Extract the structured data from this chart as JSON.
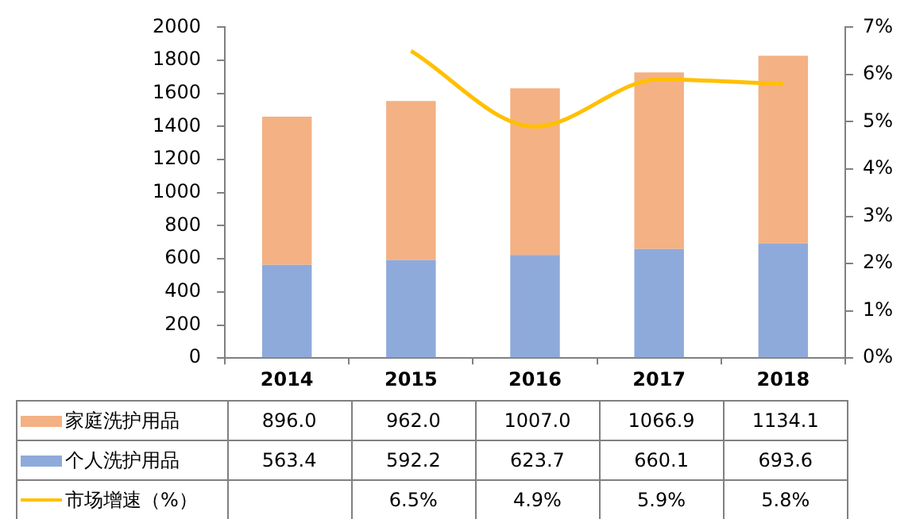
{
  "chart_data": {
    "type": "bar",
    "stacked": true,
    "categories": [
      "2014",
      "2015",
      "2016",
      "2017",
      "2018"
    ],
    "series": [
      {
        "name": "个人洗护用品",
        "color": "#8eaadb",
        "values": [
          563.4,
          592.2,
          623.7,
          660.1,
          693.6
        ],
        "value_labels": [
          "563.4",
          "592.2",
          "623.7",
          "660.1",
          "693.6"
        ]
      },
      {
        "name": "家庭洗护用品",
        "color": "#f4b183",
        "values": [
          896.0,
          962.0,
          1007.0,
          1066.9,
          1134.1
        ],
        "value_labels": [
          "896.0",
          "962.0",
          "1007.0",
          "1066.9",
          "1134.1"
        ]
      },
      {
        "name": "市场增速（%）",
        "type": "line",
        "axis": "y2",
        "color": "#ffc000",
        "values": [
          null,
          6.5,
          4.9,
          5.9,
          5.8
        ],
        "value_labels": [
          null,
          "6.5%",
          "4.9%",
          "5.9%",
          "5.8%"
        ]
      }
    ],
    "ylim": [
      0,
      2000
    ],
    "yticks": [
      0,
      200,
      400,
      600,
      800,
      1000,
      1200,
      1400,
      1600,
      1800,
      2000
    ],
    "y2lim": [
      0,
      7
    ],
    "y2ticks": [
      {
        "value": 0,
        "label": "0%"
      },
      {
        "value": 1,
        "label": "1%"
      },
      {
        "value": 2,
        "label": "2%"
      },
      {
        "value": 3,
        "label": "3%"
      },
      {
        "value": 4,
        "label": "4%"
      },
      {
        "value": 5,
        "label": "5%"
      },
      {
        "value": 6,
        "label": "6%"
      },
      {
        "value": 7,
        "label": "7%"
      }
    ],
    "legend": "bottom",
    "grid": false,
    "marker": "none"
  }
}
